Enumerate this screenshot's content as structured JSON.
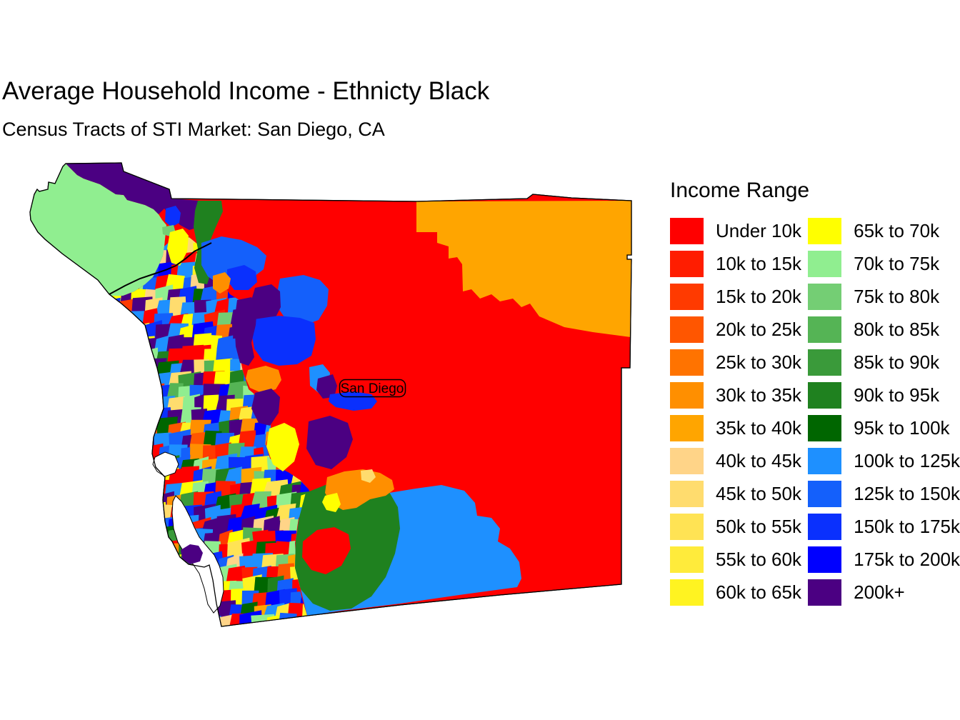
{
  "title": "Average Household Income - Ethnicty Black",
  "subtitle": "Census Tracts of STI Market: San Diego, CA",
  "map": {
    "city_label": "San Diego",
    "outline_color": "#000000",
    "water_color": "#FFFFFF",
    "background_color": "#FFFFFF"
  },
  "legend": {
    "title": "Income Range",
    "entries": [
      {
        "label": "Under 10k",
        "color": "#FF0000"
      },
      {
        "label": "10k to 15k",
        "color": "#FF1D00"
      },
      {
        "label": "15k to 20k",
        "color": "#FF3A00"
      },
      {
        "label": "20k to 25k",
        "color": "#FF5600"
      },
      {
        "label": "25k to 30k",
        "color": "#FF7300"
      },
      {
        "label": "30k to 35k",
        "color": "#FF8F00"
      },
      {
        "label": "35k to 40k",
        "color": "#FFA500"
      },
      {
        "label": "40k to 45k",
        "color": "#FFD488"
      },
      {
        "label": "45k to 50k",
        "color": "#FFDC6E"
      },
      {
        "label": "50k to 55k",
        "color": "#FFE354"
      },
      {
        "label": "55k to 60k",
        "color": "#FFEB3B"
      },
      {
        "label": "60k to 65k",
        "color": "#FFF321"
      },
      {
        "label": "65k to 70k",
        "color": "#FFFF00"
      },
      {
        "label": "70k to 75k",
        "color": "#90EE90"
      },
      {
        "label": "75k to 80k",
        "color": "#74CE74"
      },
      {
        "label": "80k to 85k",
        "color": "#55B455"
      },
      {
        "label": "85k to 90k",
        "color": "#3A9A3A"
      },
      {
        "label": "90k to 95k",
        "color": "#1F811F"
      },
      {
        "label": "95k to 100k",
        "color": "#006600"
      },
      {
        "label": "100k to 125k",
        "color": "#1E90FF"
      },
      {
        "label": "125k to 150k",
        "color": "#1460FB"
      },
      {
        "label": "150k to 175k",
        "color": "#0A30FD"
      },
      {
        "label": "175k to 200k",
        "color": "#0000FF"
      },
      {
        "label": "200k+",
        "color": "#4B0082"
      }
    ]
  }
}
